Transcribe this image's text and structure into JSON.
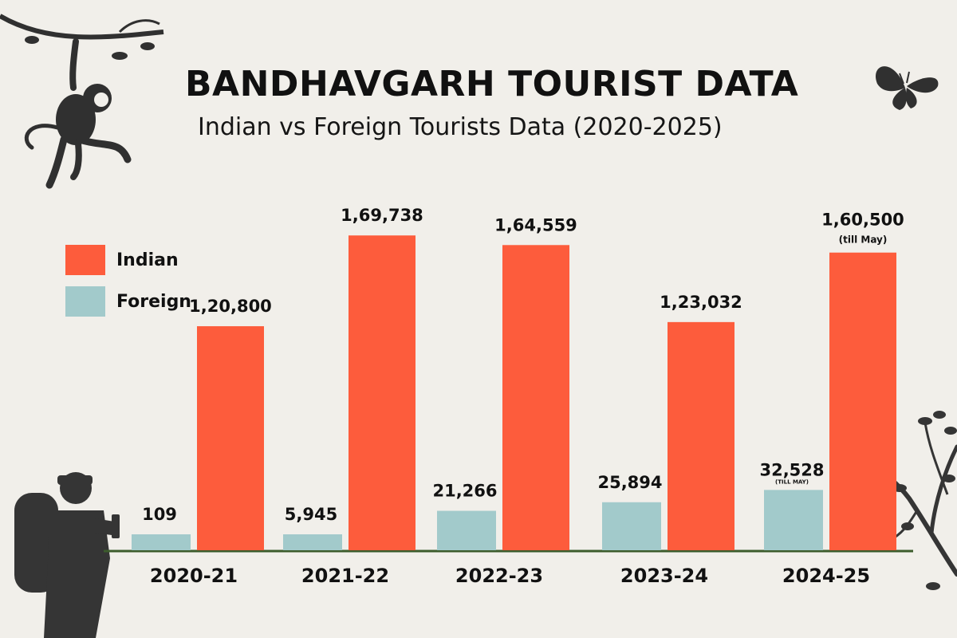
{
  "title": "BANDHAVGARH TOURIST  DATA",
  "subtitle": "Indian vs Foreign Tourists Data (2020-2025)",
  "legend": {
    "indian": "Indian",
    "foreign": "Foreign"
  },
  "colors": {
    "indian": "#fd5c3c",
    "foreign": "#a2cacb",
    "baseline": "#3c5c2c",
    "silhouette": "#303030",
    "background": "#f1efea"
  },
  "chart_data": {
    "type": "bar",
    "title": "BANDHAVGARH TOURIST  DATA",
    "subtitle": "Indian vs Foreign Tourists Data (2020-2025)",
    "xlabel": "",
    "ylabel": "",
    "ylim": [
      0,
      175000
    ],
    "grid": false,
    "legend_position": "top-left",
    "categories": [
      "2020-21",
      "2021-22",
      "2022-23",
      "2023-24",
      "2024-25"
    ],
    "series": [
      {
        "name": "Foreign",
        "values": [
          109,
          5945,
          21266,
          25894,
          32528
        ],
        "labels": [
          "109",
          "5,945",
          "21,266",
          "25,894",
          "32,528"
        ],
        "notes": [
          "",
          "",
          "",
          "",
          "(TILL MAY)"
        ]
      },
      {
        "name": "Indian",
        "values": [
          120800,
          169738,
          164559,
          123032,
          160500
        ],
        "labels": [
          "1,20,800",
          "1,69,738",
          "1,64,559",
          "1,23,032",
          "1,60,500"
        ],
        "notes": [
          "",
          "",
          "",
          "",
          "(till May)"
        ]
      }
    ]
  }
}
